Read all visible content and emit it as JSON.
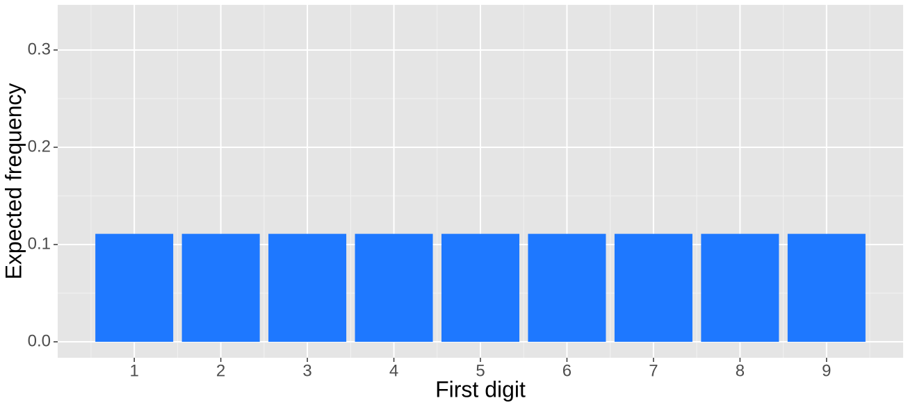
{
  "chart_data": {
    "type": "bar",
    "x_label": "First digit",
    "y_label": "Expected frequency",
    "categories": [
      "1",
      "2",
      "3",
      "4",
      "5",
      "6",
      "7",
      "8",
      "9"
    ],
    "values": [
      0.111,
      0.111,
      0.111,
      0.111,
      0.111,
      0.111,
      0.111,
      0.111,
      0.111
    ],
    "color": "#1e78ff",
    "ylim": [
      -0.0164,
      0.3464
    ],
    "yticks": [
      {
        "value": 0,
        "label": "0.0"
      },
      {
        "value": 0.1,
        "label": "0.1"
      },
      {
        "value": 0.2,
        "label": "0.2"
      },
      {
        "value": 0.3,
        "label": "0.3"
      }
    ],
    "grid": true
  }
}
